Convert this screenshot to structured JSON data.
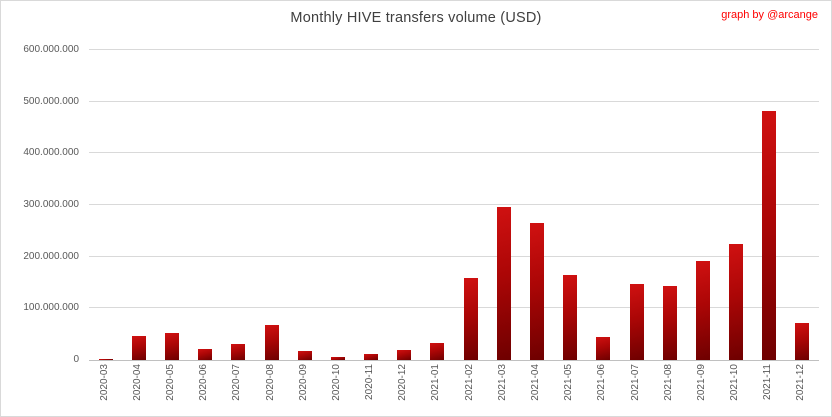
{
  "title": "Monthly HIVE transfers volume (USD)",
  "credit": "graph by @arcange",
  "colors": {
    "bar_gradient_top": "#d01111",
    "bar_gradient_bottom": "#6e0000",
    "credit_text": "#fe0000",
    "title_text": "#404040",
    "axis_label_text": "#595959",
    "gridline": "#d9d9d9",
    "axis_line": "#c0c0c0",
    "background": "#ffffff"
  },
  "chart_data": {
    "type": "bar",
    "title": "Monthly HIVE transfers volume (USD)",
    "xlabel": "",
    "ylabel": "",
    "categories": [
      "2020-03",
      "2020-04",
      "2020-05",
      "2020-06",
      "2020-07",
      "2020-08",
      "2020-09",
      "2020-10",
      "2020-11",
      "2020-12",
      "2021-01",
      "2021-02",
      "2021-03",
      "2021-04",
      "2021-05",
      "2021-06",
      "2021-07",
      "2021-08",
      "2021-09",
      "2021-10",
      "2021-11",
      "2021-12"
    ],
    "values": [
      1000000,
      47000000,
      53000000,
      22000000,
      30000000,
      67000000,
      18000000,
      6000000,
      11000000,
      19000000,
      32000000,
      158000000,
      296000000,
      265000000,
      165000000,
      44000000,
      147000000,
      143000000,
      191000000,
      224000000,
      482000000,
      71000000
    ],
    "ylim": [
      0,
      600000000
    ],
    "y_tick_values": [
      0,
      100000000,
      200000000,
      300000000,
      400000000,
      500000000,
      600000000
    ],
    "y_tick_labels": [
      "0",
      "100.000.000",
      "200.000.000",
      "300.000.000",
      "400.000.000",
      "500.000.000",
      "600.000.000"
    ],
    "grid": true,
    "legend": false
  }
}
